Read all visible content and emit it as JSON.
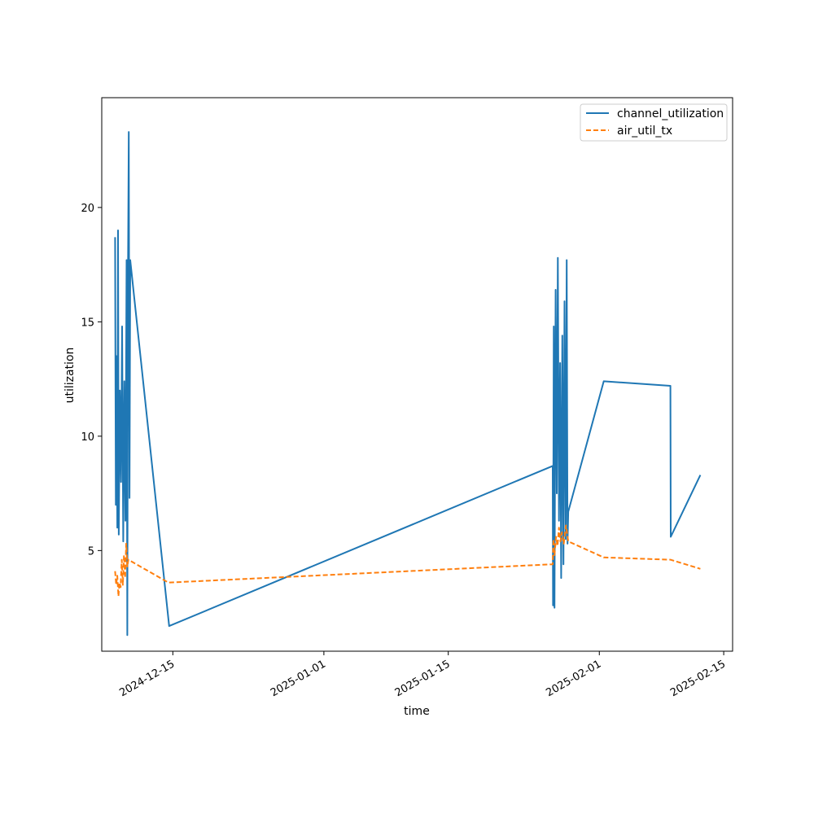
{
  "chart_data": {
    "type": "line",
    "xlabel": "time",
    "ylabel": "utilization",
    "x_tick_labels": [
      "2024-12-15",
      "2025-01-01",
      "2025-01-15",
      "2025-02-01",
      "2025-02-15"
    ],
    "y_tick_labels": [
      "5",
      "10",
      "15",
      "20"
    ],
    "ylim": [
      0.6,
      24.8
    ],
    "xlim": [
      "2024-12-07",
      "2025-02-16"
    ],
    "grid": false,
    "legend_position": "top-right",
    "series": [
      {
        "name": "channel_utilization",
        "color": "#1f77b4",
        "style": "solid",
        "points": [
          [
            "2024-12-08 12:00",
            18.7
          ],
          [
            "2024-12-08 14:00",
            7.0
          ],
          [
            "2024-12-08 16:00",
            13.5
          ],
          [
            "2024-12-08 18:00",
            6.0
          ],
          [
            "2024-12-08 20:00",
            19.0
          ],
          [
            "2024-12-08 22:00",
            5.7
          ],
          [
            "2024-12-09 01:00",
            12.0
          ],
          [
            "2024-12-09 04:00",
            8.0
          ],
          [
            "2024-12-09 07:00",
            14.8
          ],
          [
            "2024-12-09 10:00",
            5.4
          ],
          [
            "2024-12-09 13:00",
            12.4
          ],
          [
            "2024-12-09 16:00",
            6.3
          ],
          [
            "2024-12-09 19:00",
            17.7
          ],
          [
            "2024-12-09 21:00",
            1.3
          ],
          [
            "2024-12-09 23:00",
            17.5
          ],
          [
            "2024-12-10 01:00",
            23.3
          ],
          [
            "2024-12-10 03:00",
            7.3
          ],
          [
            "2024-12-10 05:00",
            17.7
          ],
          [
            "2024-12-14 14:00",
            1.7
          ],
          [
            "2025-01-26 18:00",
            8.7
          ],
          [
            "2025-01-26 19:00",
            2.6
          ],
          [
            "2025-01-26 21:00",
            14.8
          ],
          [
            "2025-01-26 23:00",
            2.5
          ],
          [
            "2025-01-27 02:00",
            16.4
          ],
          [
            "2025-01-27 05:00",
            7.5
          ],
          [
            "2025-01-27 08:00",
            17.8
          ],
          [
            "2025-01-27 11:00",
            6.3
          ],
          [
            "2025-01-27 14:00",
            13.2
          ],
          [
            "2025-01-27 17:00",
            3.8
          ],
          [
            "2025-01-27 20:00",
            14.4
          ],
          [
            "2025-01-27 23:00",
            4.4
          ],
          [
            "2025-01-28 02:00",
            15.9
          ],
          [
            "2025-01-28 05:00",
            5.5
          ],
          [
            "2025-01-28 08:00",
            17.7
          ],
          [
            "2025-01-28 10:00",
            5.3
          ],
          [
            "2025-01-28 12:00",
            6.7
          ],
          [
            "2025-02-01 12:00",
            12.4
          ],
          [
            "2025-02-09 00:00",
            12.2
          ],
          [
            "2025-02-09 01:00",
            5.6
          ],
          [
            "2025-02-12 09:00",
            8.3
          ]
        ]
      },
      {
        "name": "air_util_tx",
        "color": "#ff7f0e",
        "style": "dashed",
        "points": [
          [
            "2024-12-08 12:00",
            4.1
          ],
          [
            "2024-12-08 15:00",
            3.5
          ],
          [
            "2024-12-08 18:00",
            3.9
          ],
          [
            "2024-12-08 21:00",
            3.0
          ],
          [
            "2024-12-09 00:00",
            3.6
          ],
          [
            "2024-12-09 03:00",
            3.4
          ],
          [
            "2024-12-09 06:00",
            4.6
          ],
          [
            "2024-12-09 09:00",
            3.5
          ],
          [
            "2024-12-09 12:00",
            4.8
          ],
          [
            "2024-12-09 15:00",
            3.8
          ],
          [
            "2024-12-09 18:00",
            5.3
          ],
          [
            "2024-12-09 21:00",
            4.3
          ],
          [
            "2024-12-10 00:00",
            4.6
          ],
          [
            "2024-12-14 12:00",
            3.6
          ],
          [
            "2025-01-26 18:00",
            4.4
          ],
          [
            "2025-01-26 20:00",
            5.5
          ],
          [
            "2025-01-26 23:00",
            4.8
          ],
          [
            "2025-01-27 03:00",
            5.6
          ],
          [
            "2025-01-27 07:00",
            5.2
          ],
          [
            "2025-01-27 11:00",
            6.0
          ],
          [
            "2025-01-27 15:00",
            5.4
          ],
          [
            "2025-01-27 19:00",
            5.8
          ],
          [
            "2025-01-28 00:00",
            5.3
          ],
          [
            "2025-01-28 06:00",
            6.1
          ],
          [
            "2025-01-28 12:00",
            5.4
          ],
          [
            "2025-02-01 12:00",
            4.7
          ],
          [
            "2025-02-09 00:00",
            4.6
          ],
          [
            "2025-02-12 09:00",
            4.2
          ]
        ]
      }
    ]
  }
}
